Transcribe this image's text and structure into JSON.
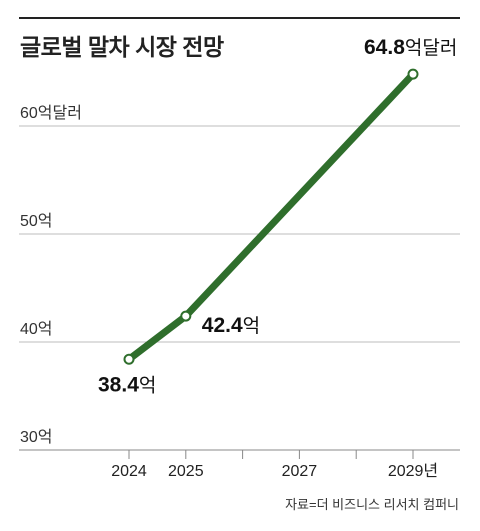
{
  "title": "글로벌 말차 시장 전망",
  "source": "자료=더 비즈니스 리서치 컴퍼니",
  "chart_data": {
    "type": "line",
    "title": "글로벌 말차 시장 전망",
    "xlabel": "",
    "ylabel": "",
    "x": [
      2024,
      2025,
      2029
    ],
    "x_ticks": [
      2024,
      2025,
      2026,
      2027,
      2028,
      2029
    ],
    "x_tick_labels": [
      "2024",
      "2025",
      "",
      "2027",
      "",
      "2029년"
    ],
    "y_ticks": [
      30,
      40,
      50,
      60
    ],
    "y_tick_labels": [
      "30억",
      "40억",
      "50억",
      "60억달러"
    ],
    "xlim": [
      2023.2,
      2029.8
    ],
    "ylim": [
      29,
      71
    ],
    "grid": true,
    "line_color": "#2f6e2c",
    "series": [
      {
        "values": [
          38.4,
          42.4,
          64.8
        ],
        "labels": [
          "38.4억",
          "42.4억",
          "64.8억달러"
        ]
      }
    ]
  }
}
